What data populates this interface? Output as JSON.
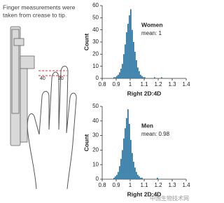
{
  "caption": [
    "Finger measurements were",
    "taken from crease to tip."
  ],
  "illustration_labels": [
    "40",
    "20"
  ],
  "watermark": "中国生物技术网",
  "chart_data": [
    {
      "type": "histogram",
      "annotation": "Women",
      "subtitle": "mean: 1",
      "xlabel": "Right 2D:4D",
      "ylabel": "Count",
      "color": "#2e6f97",
      "bins": [
        0.88,
        0.89,
        0.9,
        0.91,
        0.92,
        0.93,
        0.94,
        0.95,
        0.96,
        0.97,
        0.98,
        0.99,
        1.0,
        1.01,
        1.02,
        1.03,
        1.04,
        1.05,
        1.06,
        1.07,
        1.08,
        1.09,
        1.1,
        1.11,
        1.12,
        1.13,
        1.14,
        1.15,
        1.16,
        1.17,
        1.18,
        1.19,
        1.2,
        1.21,
        1.22,
        1.23,
        1.24
      ],
      "values": [
        1,
        1,
        2,
        3,
        5,
        8,
        12,
        20,
        28,
        38,
        45,
        52,
        57,
        40,
        30,
        22,
        15,
        9,
        6,
        3,
        2,
        1,
        1,
        0,
        0,
        0,
        0,
        0,
        0,
        1,
        0,
        0,
        0,
        0,
        1,
        0
      ],
      "xlim": [
        0.8,
        1.4
      ],
      "xticks": [
        0.8,
        0.9,
        1,
        1.1,
        1.2,
        1.3,
        1.4
      ],
      "ylim": [
        0,
        60
      ],
      "yticks": [
        0,
        10,
        20,
        30,
        40,
        50,
        60
      ]
    },
    {
      "type": "histogram",
      "annotation": "Men",
      "subtitle": "mean: 0.98",
      "xlabel": "Right 2D:4D",
      "ylabel": "Count",
      "color": "#2e6f97",
      "bins": [
        0.88,
        0.89,
        0.9,
        0.91,
        0.92,
        0.93,
        0.94,
        0.95,
        0.96,
        0.97,
        0.98,
        0.99,
        1.0,
        1.01,
        1.02,
        1.03,
        1.04,
        1.05,
        1.06,
        1.07,
        1.08,
        1.09,
        1.1,
        1.11,
        1.12,
        1.13,
        1.14,
        1.15,
        1.16,
        1.17,
        1.18,
        1.19,
        1.2,
        1.21,
        1.22,
        1.23,
        1.24
      ],
      "values": [
        1,
        2,
        3,
        5,
        9,
        14,
        20,
        28,
        35,
        42,
        48,
        38,
        27,
        18,
        12,
        8,
        5,
        3,
        2,
        1,
        1,
        0,
        0,
        0,
        0,
        0,
        0,
        0,
        0,
        0,
        0,
        1,
        0,
        0,
        0,
        0
      ],
      "xlim": [
        0.8,
        1.4
      ],
      "xticks": [
        0.8,
        0.9,
        1,
        1.1,
        1.2,
        1.3,
        1.4
      ],
      "ylim": [
        0,
        50
      ],
      "yticks": [
        0,
        10,
        20,
        30,
        40,
        50
      ]
    }
  ]
}
